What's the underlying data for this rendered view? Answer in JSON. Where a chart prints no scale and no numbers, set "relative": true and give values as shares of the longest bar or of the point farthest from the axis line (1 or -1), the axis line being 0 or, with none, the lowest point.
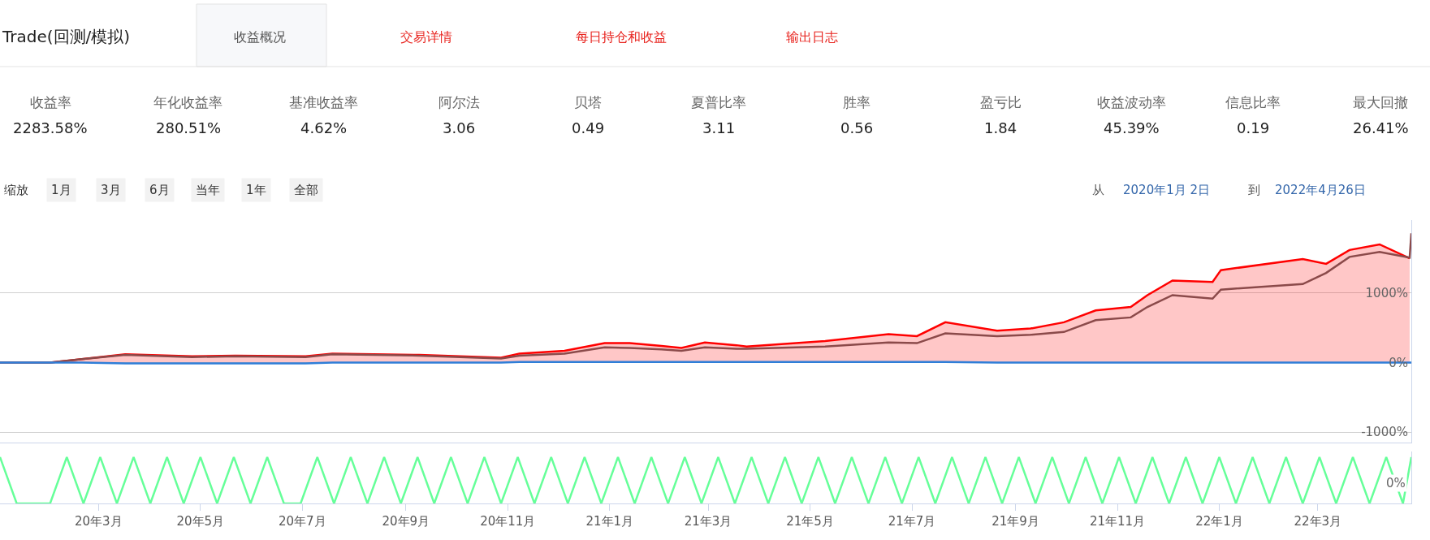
{
  "chart_data": [
    {
      "type": "other",
      "title": "Trade(回测/模拟)",
      "annotations": [
        "收益概况",
        "交易详情",
        "每日持仓和收益",
        "输出日志",
        "收益率",
        "2283.58%",
        "年化收益率",
        "280.51%",
        "基准收益率",
        "4.62%",
        "阿尔法",
        "3.06",
        "贝塔",
        "0.49",
        "夏普比率",
        "3.11",
        "胜率",
        "0.56",
        "盈亏比",
        "1.84",
        "收益波动率",
        "45.39%",
        "信息比率",
        "0.19",
        "最大回撤",
        "26.41%",
        "缩放",
        "1月",
        "3月",
        "6月",
        "当年",
        "1年",
        "全部",
        "从",
        "2020年1月 2日",
        "到",
        "2022年4月26日"
      ]
    },
    {
      "type": "line",
      "x": [
        "2020-01-02",
        "2020-02-01",
        "2020-02-20",
        "2020-03-17",
        "2020-04-26",
        "2020-05-22",
        "2020-07-03",
        "2020-07-19",
        "2020-09-09",
        "2020-10-28",
        "2020-11-08",
        "2020-12-05",
        "2020-12-29",
        "2021-01-13",
        "2021-02-01",
        "2021-02-13",
        "2021-02-27",
        "2021-03-18",
        "2021-03-24",
        "2021-05-10",
        "2021-06-17",
        "2021-07-04",
        "2021-07-21",
        "2021-08-21",
        "2021-09-10",
        "2021-09-30",
        "2021-10-19",
        "2021-11-09",
        "2021-11-19",
        "2021-12-04",
        "2021-12-28",
        "2022-01-02",
        "2022-02-20",
        "2022-03-06",
        "2022-03-20",
        "2022-04-07",
        "2022-04-25",
        "2022-04-26"
      ],
      "series": [
        {
          "type": "area",
          "color": "#ff0000",
          "values": [
            0,
            0,
            50,
            120,
            90,
            100,
            90,
            130,
            110,
            70,
            130,
            170,
            280,
            280,
            240,
            210,
            290,
            250,
            230,
            310,
            410,
            380,
            580,
            460,
            490,
            580,
            750,
            800,
            970,
            1180,
            1160,
            1330,
            1490,
            1420,
            1620,
            1700,
            1500,
            null
          ]
        },
        {
          "type": "line",
          "color": "#8b4a4a",
          "values": [
            0,
            0,
            50,
            110,
            80,
            90,
            80,
            120,
            100,
            60,
            100,
            130,
            220,
            210,
            190,
            170,
            220,
            200,
            200,
            230,
            290,
            280,
            420,
            380,
            400,
            440,
            610,
            650,
            800,
            970,
            920,
            1050,
            1130,
            1290,
            1520,
            1590,
            1510,
            1860
          ]
        },
        {
          "type": "line",
          "color": "#2f7ed8",
          "values": [
            0,
            0,
            0,
            -10,
            -10,
            -10,
            -10,
            0,
            0,
            0,
            10,
            10,
            10,
            10,
            10,
            10,
            10,
            10,
            10,
            10,
            10,
            10,
            10,
            0,
            0,
            0,
            0,
            0,
            0,
            0,
            0,
            0,
            0,
            0,
            0,
            0,
            0,
            0
          ]
        }
      ],
      "xlim": [
        "2020-01-02",
        "2022-04-26"
      ],
      "ylim": [
        -1150,
        2050
      ],
      "yticks": [
        {
          "value": -1000,
          "label": "-1000%"
        },
        {
          "value": 0,
          "label": "0%"
        },
        {
          "value": 1000,
          "label": "1000%"
        }
      ],
      "grid": "y",
      "tick_labels": "y"
    },
    {
      "type": "line",
      "relative": true,
      "annotations": [
        "0%"
      ],
      "x": [
        "2020-01-02",
        "2020-01-12",
        "2020-01-22",
        "2020-02-01",
        "2020-02-11",
        "2020-02-21",
        "2020-03-02",
        "2020-03-12",
        "2020-03-22",
        "2020-04-01",
        "2020-04-11",
        "2020-04-21",
        "2020-05-01",
        "2020-05-11",
        "2020-05-21",
        "2020-05-31",
        "2020-06-10",
        "2020-06-20",
        "2020-06-30",
        "2020-07-10",
        "2020-07-20",
        "2020-07-30",
        "2020-08-09",
        "2020-08-19",
        "2020-08-29",
        "2020-09-08",
        "2020-09-18",
        "2020-09-28",
        "2020-10-08",
        "2020-10-18",
        "2020-10-28",
        "2020-11-07",
        "2020-11-17",
        "2020-11-27",
        "2020-12-07",
        "2020-12-17",
        "2020-12-27",
        "2021-01-06",
        "2021-01-16",
        "2021-01-26",
        "2021-02-05",
        "2021-02-15",
        "2021-02-25",
        "2021-03-07",
        "2021-03-17",
        "2021-03-27",
        "2021-04-06",
        "2021-04-16",
        "2021-04-26",
        "2021-05-06",
        "2021-05-16",
        "2021-05-26",
        "2021-06-05",
        "2021-06-15",
        "2021-06-25",
        "2021-07-05",
        "2021-07-15",
        "2021-07-25",
        "2021-08-04",
        "2021-08-14",
        "2021-08-24",
        "2021-09-03",
        "2021-09-13",
        "2021-09-23",
        "2021-10-03",
        "2021-10-13",
        "2021-10-23",
        "2021-11-02",
        "2021-11-12",
        "2021-11-22",
        "2021-12-02",
        "2021-12-12",
        "2021-12-22",
        "2022-01-01",
        "2022-01-11",
        "2022-01-21",
        "2022-01-31",
        "2022-02-10",
        "2022-02-20",
        "2022-03-02",
        "2022-03-12",
        "2022-03-22",
        "2022-04-01",
        "2022-04-11",
        "2022-04-21",
        "2022-04-26"
      ],
      "series": [
        {
          "color": "#66ff99",
          "values": [
            1,
            0,
            0,
            0,
            1,
            0,
            1,
            0,
            1,
            0,
            1,
            0,
            1,
            0,
            1,
            0,
            1,
            0,
            0,
            1,
            0,
            1,
            0,
            1,
            0,
            1,
            0,
            1,
            0,
            1,
            0,
            1,
            0,
            1,
            0,
            1,
            0,
            1,
            0,
            1,
            0,
            1,
            0,
            1,
            0,
            1,
            0,
            1,
            0,
            1,
            0,
            1,
            0,
            1,
            0,
            1,
            0,
            1,
            0,
            1,
            0,
            1,
            0,
            1,
            0,
            1,
            0,
            1,
            0,
            1,
            0,
            1,
            0,
            1,
            0,
            1,
            0,
            1,
            0,
            1,
            0,
            1,
            0,
            1,
            0,
            1
          ]
        }
      ],
      "xlim": [
        "2020-01-02",
        "2022-04-26"
      ],
      "xticks": [
        {
          "value": "2020-03-01",
          "label": "20年3月"
        },
        {
          "value": "2020-05-01",
          "label": "20年5月"
        },
        {
          "value": "2020-07-01",
          "label": "20年7月"
        },
        {
          "value": "2020-09-01",
          "label": "20年9月"
        },
        {
          "value": "2020-11-01",
          "label": "20年11月"
        },
        {
          "value": "2021-01-01",
          "label": "21年1月"
        },
        {
          "value": "2021-03-01",
          "label": "21年3月"
        },
        {
          "value": "2021-05-01",
          "label": "21年5月"
        },
        {
          "value": "2021-07-01",
          "label": "21年7月"
        },
        {
          "value": "2021-09-01",
          "label": "21年9月"
        },
        {
          "value": "2021-11-01",
          "label": "21年11月"
        },
        {
          "value": "2022-01-01",
          "label": "22年1月"
        },
        {
          "value": "2022-03-01",
          "label": "22年3月"
        }
      ],
      "tick_labels": "x"
    }
  ]
}
